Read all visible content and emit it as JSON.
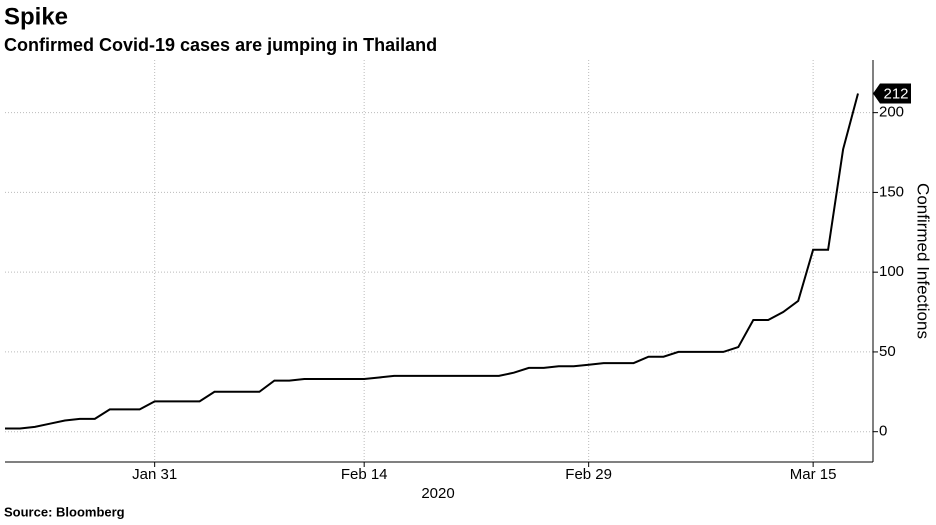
{
  "chart_data": {
    "type": "line",
    "title": "Spike",
    "subtitle": "Confirmed Covid-19 cases are jumping in Thailand",
    "source": "Source: Bloomberg",
    "x_axis_label": "2020",
    "y_axis_label": "Confirmed Infections",
    "x": [
      "2020-01-21",
      "2020-01-22",
      "2020-01-23",
      "2020-01-24",
      "2020-01-25",
      "2020-01-26",
      "2020-01-27",
      "2020-01-28",
      "2020-01-29",
      "2020-01-30",
      "2020-01-31",
      "2020-02-01",
      "2020-02-02",
      "2020-02-03",
      "2020-02-04",
      "2020-02-05",
      "2020-02-06",
      "2020-02-07",
      "2020-02-08",
      "2020-02-09",
      "2020-02-10",
      "2020-02-11",
      "2020-02-12",
      "2020-02-13",
      "2020-02-14",
      "2020-02-15",
      "2020-02-16",
      "2020-02-17",
      "2020-02-18",
      "2020-02-19",
      "2020-02-20",
      "2020-02-21",
      "2020-02-22",
      "2020-02-23",
      "2020-02-24",
      "2020-02-25",
      "2020-02-26",
      "2020-02-27",
      "2020-02-28",
      "2020-02-29",
      "2020-03-01",
      "2020-03-02",
      "2020-03-03",
      "2020-03-04",
      "2020-03-05",
      "2020-03-06",
      "2020-03-07",
      "2020-03-08",
      "2020-03-09",
      "2020-03-10",
      "2020-03-11",
      "2020-03-12",
      "2020-03-13",
      "2020-03-14",
      "2020-03-15",
      "2020-03-16",
      "2020-03-17",
      "2020-03-18"
    ],
    "series": [
      {
        "name": "Confirmed Infections",
        "color": "#000000",
        "values": [
          2,
          2,
          3,
          5,
          7,
          8,
          8,
          14,
          14,
          14,
          19,
          19,
          19,
          19,
          25,
          25,
          25,
          25,
          32,
          32,
          33,
          33,
          33,
          33,
          33,
          34,
          35,
          35,
          35,
          35,
          35,
          35,
          35,
          35,
          37,
          40,
          40,
          41,
          41,
          42,
          43,
          43,
          43,
          47,
          47,
          50,
          50,
          50,
          50,
          53,
          70,
          70,
          75,
          82,
          114,
          114,
          177,
          212
        ]
      }
    ],
    "xlim": [
      "2020-01-21",
      "2020-03-19"
    ],
    "xticks": [
      {
        "value": "2020-01-31",
        "label": "Jan 31"
      },
      {
        "value": "2020-02-14",
        "label": "Feb 14"
      },
      {
        "value": "2020-02-29",
        "label": "Feb 29"
      },
      {
        "value": "2020-03-15",
        "label": "Mar 15"
      }
    ],
    "ylim": [
      -19,
      233
    ],
    "yticks": [
      0,
      50,
      100,
      150,
      200
    ],
    "grid": true
  }
}
